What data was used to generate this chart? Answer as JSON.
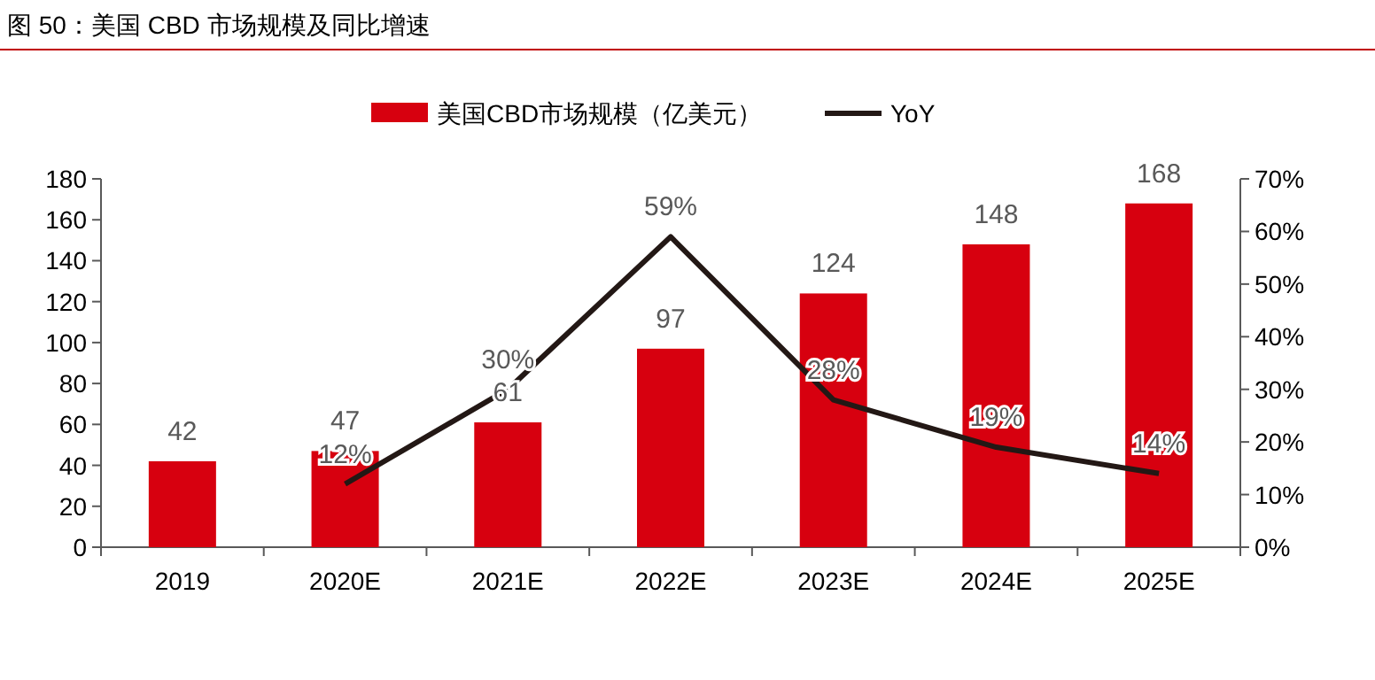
{
  "chart_data": {
    "type": "bar",
    "title": "图 50：美国 CBD 市场规模及同比增速",
    "categories": [
      "2019",
      "2020E",
      "2021E",
      "2022E",
      "2023E",
      "2024E",
      "2025E"
    ],
    "series": [
      {
        "name": "美国CBD市场规模（亿美元）",
        "color": "#d7000f",
        "values": [
          42,
          47,
          61,
          97,
          124,
          148,
          168
        ],
        "value_labels": [
          "42",
          "47",
          "61",
          "97",
          "124",
          "148",
          "168"
        ]
      },
      {
        "name": "YoY",
        "type": "line",
        "axis": "y2",
        "color": "#231815",
        "values": [
          null,
          12,
          30,
          59,
          28,
          19,
          14
        ],
        "value_labels": [
          null,
          "12%",
          "30%",
          "59%",
          "28%",
          "19%",
          "14%"
        ]
      }
    ],
    "ylim": [
      0,
      180
    ],
    "yticks": [
      0,
      20,
      40,
      60,
      80,
      100,
      120,
      140,
      160,
      180
    ],
    "y2lim": [
      0,
      70
    ],
    "y2ticks": [
      {
        "value": 0,
        "label": "0%"
      },
      {
        "value": 10,
        "label": "10%"
      },
      {
        "value": 20,
        "label": "20%"
      },
      {
        "value": 30,
        "label": "30%"
      },
      {
        "value": 40,
        "label": "40%"
      },
      {
        "value": 50,
        "label": "50%"
      },
      {
        "value": 60,
        "label": "60%"
      },
      {
        "value": 70,
        "label": "70%"
      }
    ],
    "legend": "top",
    "grid": false
  }
}
